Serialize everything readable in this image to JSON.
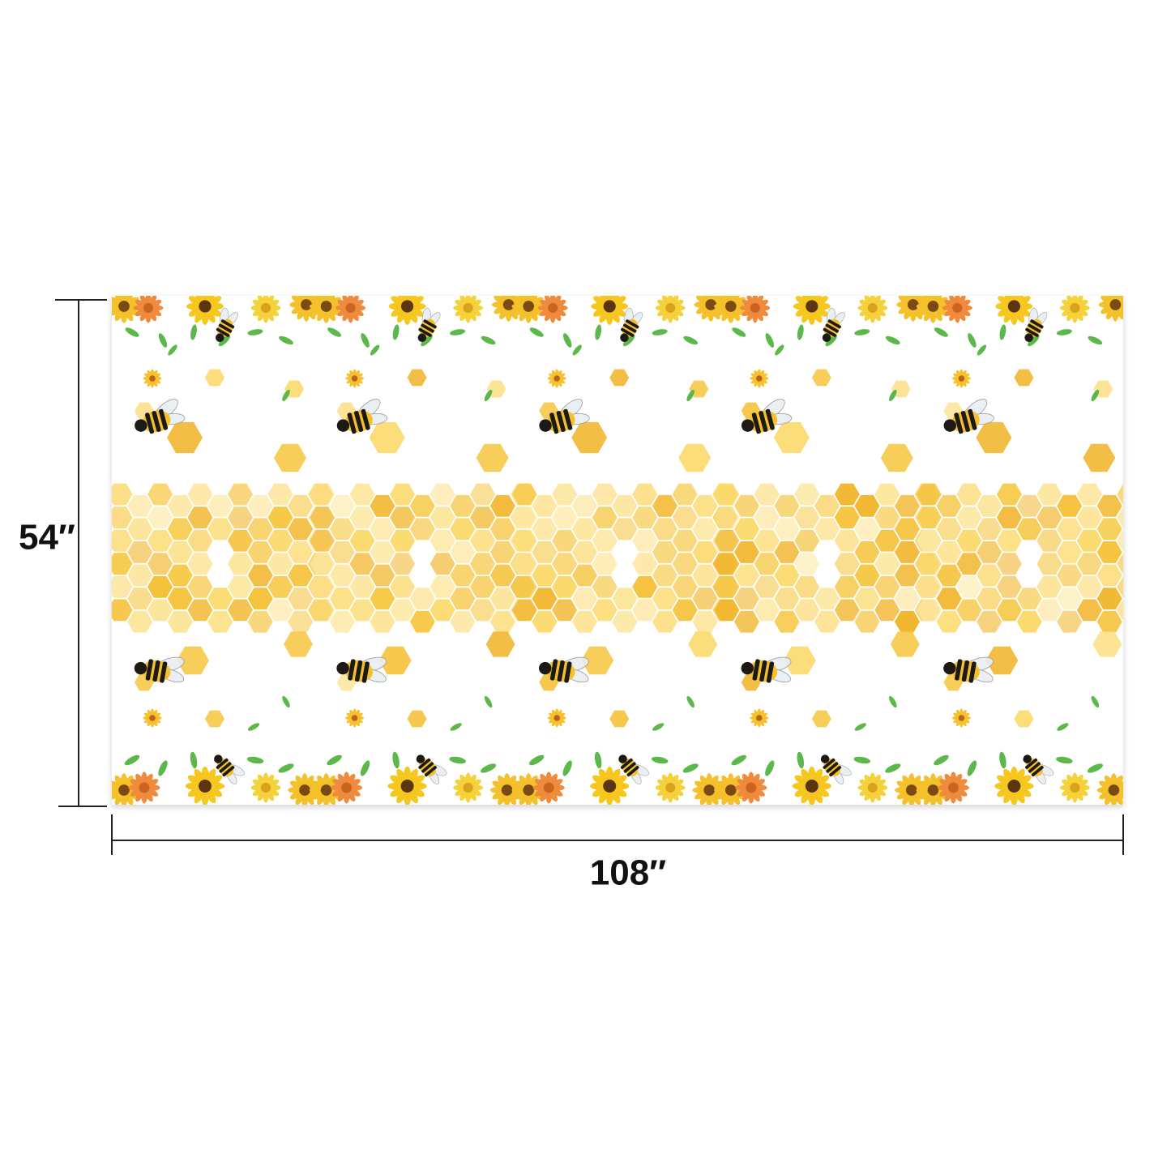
{
  "dimensions": {
    "height_label": "54″",
    "width_label": "108″"
  }
}
